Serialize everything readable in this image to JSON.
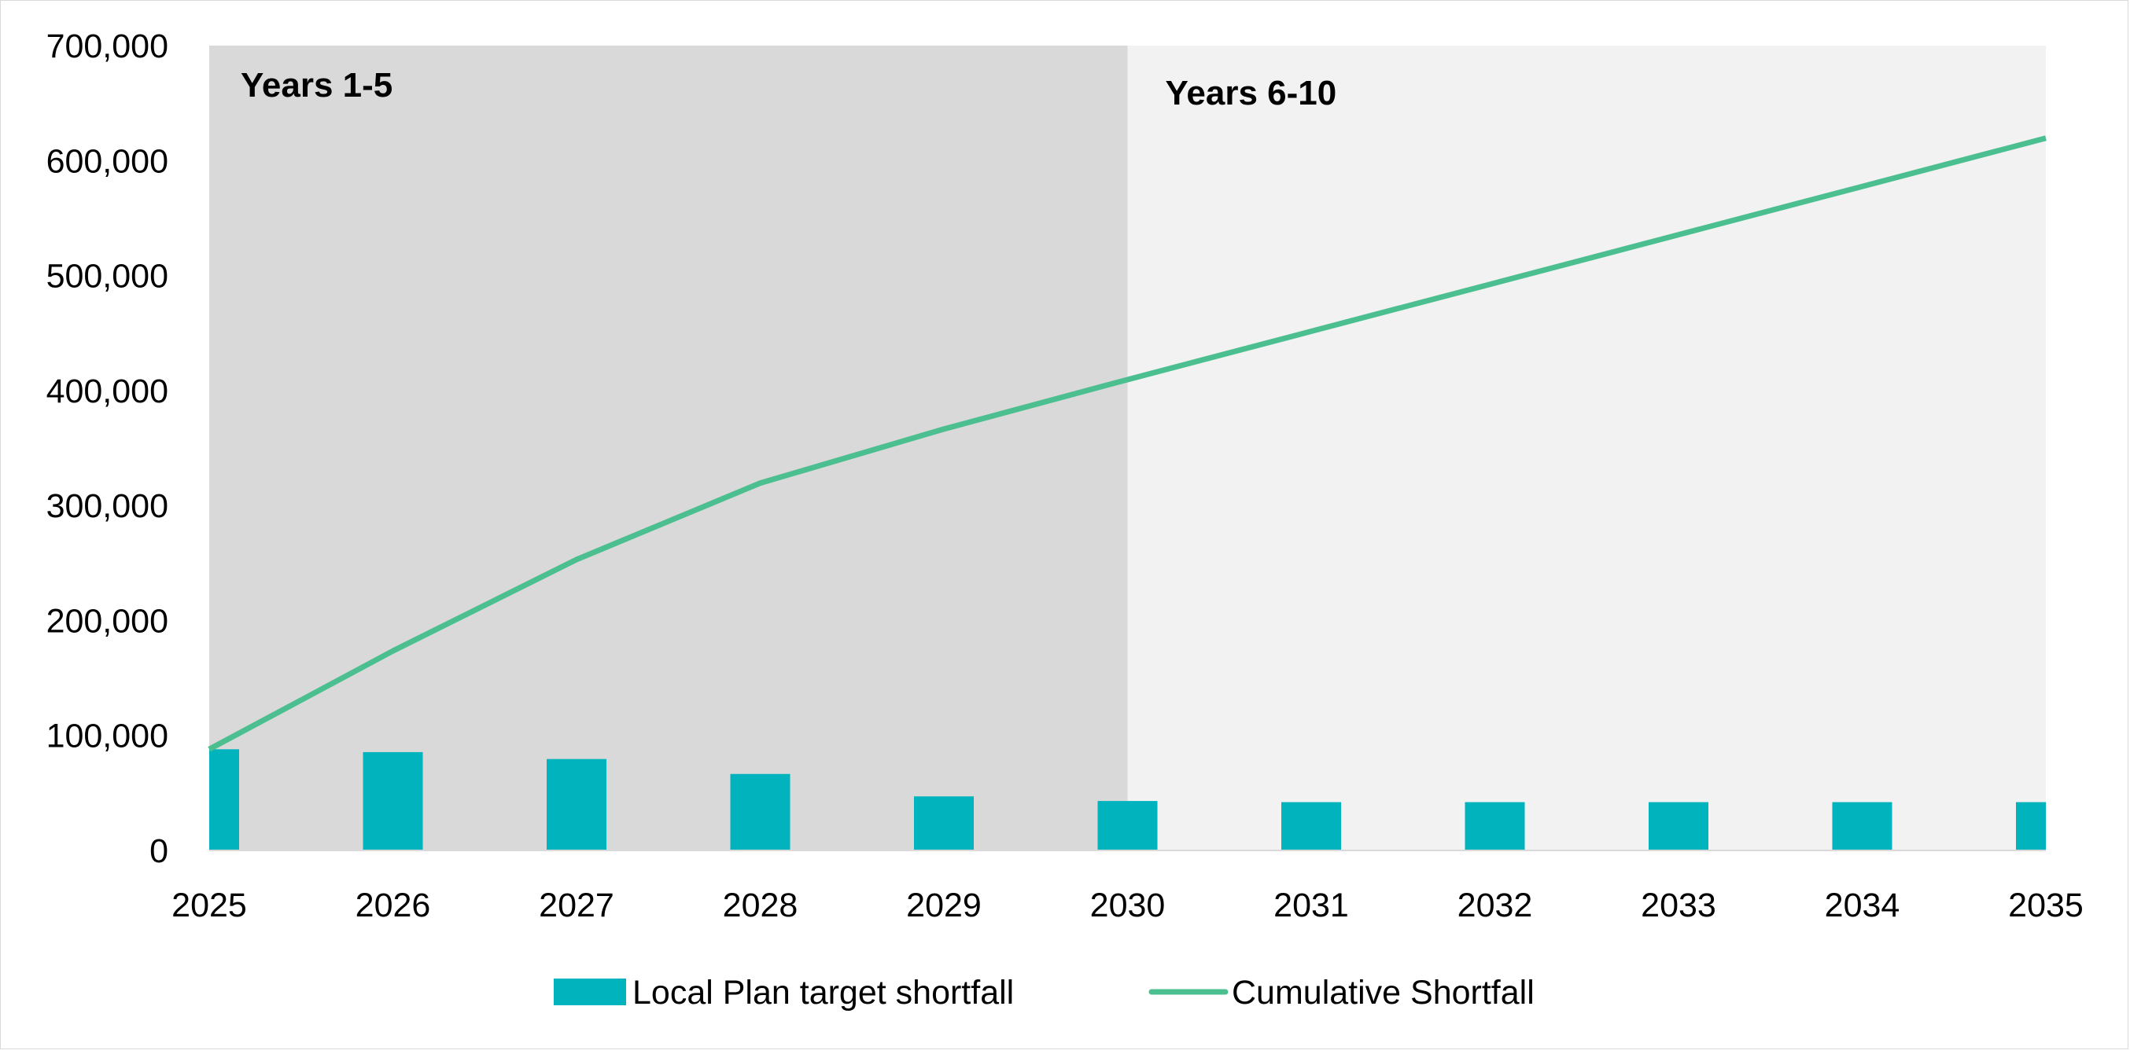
{
  "chart_data": {
    "type": "bar",
    "categories": [
      "2025",
      "2026",
      "2027",
      "2028",
      "2029",
      "2030",
      "2031",
      "2032",
      "2033",
      "2034",
      "2035"
    ],
    "series": [
      {
        "name": "Local Plan target shortfall",
        "kind": "bar",
        "color": "#00b3bd",
        "values": [
          88000,
          85500,
          79500,
          66500,
          47000,
          43000,
          42000,
          42000,
          42000,
          42000,
          42000
        ]
      },
      {
        "name": "Cumulative Shortfall",
        "kind": "line",
        "color": "#4cbf91",
        "values": [
          88000,
          173500,
          253000,
          319500,
          366500,
          409500,
          451500,
          493500,
          535500,
          577500,
          619500
        ]
      }
    ],
    "title": "",
    "xlabel": "",
    "ylabel": "",
    "ylim": [
      0,
      700000
    ],
    "yticks": [
      "0",
      "100,000",
      "200,000",
      "300,000",
      "400,000",
      "500,000",
      "600,000",
      "700,000"
    ],
    "grid": false,
    "legend_position": "bottom",
    "shaded_regions": [
      {
        "label": "Years 1-5",
        "from": "2025",
        "to": "2030",
        "color": "#d9d9d9"
      },
      {
        "label": "Years 6-10",
        "from": "2030",
        "to": "2035",
        "color": "#f2f2f2"
      }
    ]
  }
}
